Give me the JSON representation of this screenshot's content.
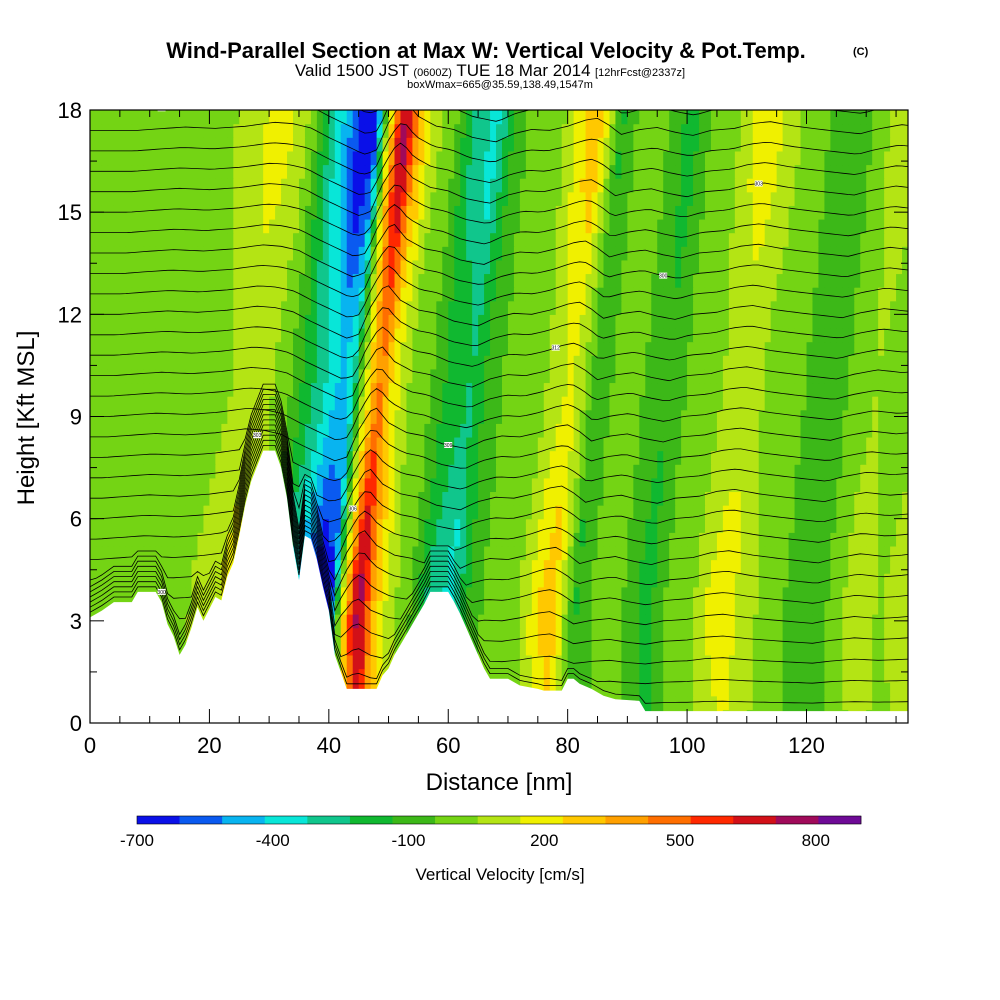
{
  "chart_data": {
    "type": "heatmap",
    "title": "Wind-Parallel Section at Max W: Vertical Velocity & Pot.Temp.",
    "title_mark": "(C)",
    "subtitle": {
      "valid": "Valid 1500 JST",
      "utc": "(0600Z)",
      "date": "TUE 18 Mar 2014",
      "forecast": "[12hrFcst@2337z]"
    },
    "box_info": "boxWmax=665@35.59,138.49,1547m",
    "xlabel": "Distance [nm]",
    "ylabel": "Height [Kft MSL]",
    "xlim": [
      0,
      137
    ],
    "ylim": [
      0,
      18
    ],
    "xticks": [
      "0",
      "20",
      "40",
      "60",
      "80",
      "100",
      "120"
    ],
    "yticks": [
      "0",
      "3",
      "6",
      "9",
      "12",
      "15",
      "18"
    ],
    "colorbar": {
      "label": "Vertical Velocity [cm/s]",
      "ticks": [
        "-700",
        "-400",
        "-100",
        "200",
        "500",
        "800"
      ],
      "bounds": [
        -700,
        -600,
        -500,
        -400,
        -300,
        -200,
        -100,
        0,
        100,
        200,
        300,
        400,
        500,
        600,
        700,
        800,
        900
      ],
      "colors": [
        "#0a10e8",
        "#0a5af0",
        "#08b4f0",
        "#08e6d8",
        "#10c68c",
        "#10b830",
        "#3cb818",
        "#74d414",
        "#b4e414",
        "#f0f000",
        "#ffc800",
        "#ffa000",
        "#ff6e00",
        "#ff2800",
        "#d21018",
        "#a00a5a",
        "#6e0a96"
      ]
    },
    "terrain_kft": [
      [
        0,
        3.1
      ],
      [
        2,
        3.3
      ],
      [
        4,
        3.55
      ],
      [
        7,
        3.55
      ],
      [
        8,
        3.85
      ],
      [
        11,
        3.85
      ],
      [
        12,
        3.55
      ],
      [
        13,
        2.9
      ],
      [
        14,
        2.55
      ],
      [
        15,
        2.0
      ],
      [
        16,
        2.3
      ],
      [
        17,
        2.8
      ],
      [
        18,
        3.4
      ],
      [
        19,
        3.0
      ],
      [
        20,
        3.35
      ],
      [
        21,
        3.7
      ],
      [
        22,
        3.6
      ],
      [
        23,
        4.3
      ],
      [
        24,
        4.7
      ],
      [
        25,
        5.5
      ],
      [
        26,
        6.4
      ],
      [
        27,
        7.1
      ],
      [
        28,
        7.55
      ],
      [
        29,
        8.0
      ],
      [
        31,
        8.0
      ],
      [
        32,
        7.5
      ],
      [
        33,
        6.6
      ],
      [
        34,
        5.2
      ],
      [
        35,
        4.2
      ],
      [
        36,
        5.5
      ],
      [
        37,
        5.4
      ],
      [
        38,
        4.8
      ],
      [
        39,
        4.0
      ],
      [
        40,
        3.3
      ],
      [
        41,
        2.0
      ],
      [
        42,
        1.5
      ],
      [
        43,
        1.0
      ],
      [
        48,
        1.0
      ],
      [
        49,
        1.4
      ],
      [
        50,
        1.6
      ],
      [
        51,
        2.0
      ],
      [
        52,
        2.3
      ],
      [
        53,
        2.6
      ],
      [
        54,
        2.9
      ],
      [
        55,
        3.2
      ],
      [
        56,
        3.5
      ],
      [
        57,
        3.85
      ],
      [
        60,
        3.85
      ],
      [
        61,
        3.55
      ],
      [
        62,
        3.2
      ],
      [
        63,
        2.8
      ],
      [
        64,
        2.4
      ],
      [
        65,
        2.0
      ],
      [
        66,
        1.6
      ],
      [
        67,
        1.3
      ],
      [
        70,
        1.3
      ],
      [
        72,
        1.1
      ],
      [
        75,
        1.0
      ],
      [
        76,
        0.95
      ],
      [
        79,
        0.95
      ],
      [
        80,
        1.3
      ],
      [
        81,
        1.3
      ],
      [
        82,
        1.15
      ],
      [
        84,
        1.0
      ],
      [
        86,
        0.8
      ],
      [
        88,
        0.7
      ],
      [
        92,
        0.65
      ],
      [
        93,
        0.35
      ],
      [
        137,
        0.35
      ]
    ],
    "w_profile": [
      [
        0,
        0
      ],
      [
        3,
        40
      ],
      [
        8,
        100
      ],
      [
        13,
        60
      ],
      [
        18,
        120
      ],
      [
        23,
        240
      ],
      [
        26,
        200
      ],
      [
        29,
        80
      ],
      [
        32,
        -200
      ],
      [
        35,
        -450
      ],
      [
        38,
        -700
      ],
      [
        40,
        -600
      ],
      [
        42,
        200
      ],
      [
        44,
        760
      ],
      [
        45,
        850
      ],
      [
        47,
        420
      ],
      [
        50,
        130
      ],
      [
        53,
        30
      ],
      [
        56,
        -200
      ],
      [
        60,
        -340
      ],
      [
        63,
        -100
      ],
      [
        66,
        30
      ],
      [
        69,
        0
      ],
      [
        72,
        120
      ],
      [
        75,
        300
      ],
      [
        77,
        360
      ],
      [
        79,
        160
      ],
      [
        81,
        -120
      ],
      [
        84,
        20
      ],
      [
        87,
        90
      ],
      [
        90,
        -50
      ],
      [
        93,
        -150
      ],
      [
        96,
        0
      ],
      [
        100,
        60
      ],
      [
        103,
        200
      ],
      [
        106,
        260
      ],
      [
        110,
        130
      ],
      [
        114,
        40
      ],
      [
        118,
        -40
      ],
      [
        121,
        -100
      ],
      [
        124,
        40
      ],
      [
        128,
        170
      ],
      [
        132,
        90
      ],
      [
        135,
        130
      ],
      [
        137,
        170
      ]
    ],
    "theta_labels": [
      "300",
      "303",
      "306",
      "309",
      "312"
    ]
  }
}
